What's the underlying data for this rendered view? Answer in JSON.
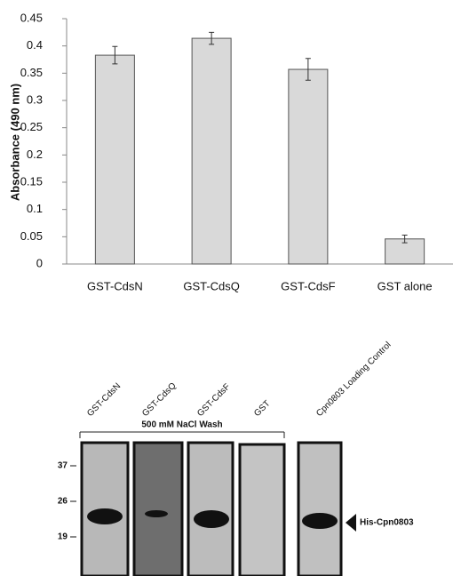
{
  "chart_data": {
    "type": "bar",
    "y_label": "Absorbance (490 nm)",
    "categories": [
      "GST-CdsN",
      "GST-CdsQ",
      "GST-CdsF",
      "GST alone"
    ],
    "values": [
      0.383,
      0.414,
      0.357,
      0.046
    ],
    "errors": [
      0.016,
      0.011,
      0.02,
      0.007
    ],
    "color": "#d9d9d9",
    "ylim": [
      0,
      0.45
    ],
    "yticks": [
      0,
      0.05,
      0.1,
      0.15,
      0.2,
      0.25,
      0.3,
      0.35,
      0.4,
      0.45
    ],
    "grid": false
  },
  "blot": {
    "lanes": [
      "GST-CdsN",
      "GST-CdsQ",
      "GST-CdsF",
      "GST",
      "Cpn0803 Loading Control"
    ],
    "wash_label": "500 mM NaCl Wash",
    "mw_markers": [
      37,
      26,
      19
    ],
    "band_label": "His-Cpn0803"
  }
}
